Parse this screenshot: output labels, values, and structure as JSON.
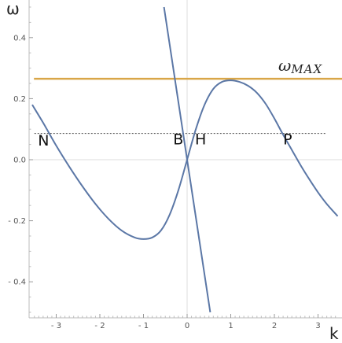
{
  "chart_data": {
    "type": "line",
    "xlabel": "k",
    "ylabel": "ω",
    "xlim": [
      -3.6,
      3.5
    ],
    "ylim": [
      -0.52,
      0.52
    ],
    "xticks": [
      -3,
      -2,
      -1,
      0,
      1,
      2,
      3
    ],
    "yticks": [
      -0.4,
      -0.2,
      0.0,
      0.2,
      0.4
    ],
    "xtick_labels": [
      "- 3",
      "- 2",
      "- 1",
      "0",
      "1",
      "2",
      "3"
    ],
    "ytick_labels": [
      "- 0.4",
      "- 0.2",
      "0.0",
      "0.2",
      "0.4"
    ],
    "grid": false,
    "colors": {
      "curve": "#5b77a6",
      "max_line": "#d9a648",
      "dotted": "#444444",
      "axes": "#bbbbbb"
    },
    "series": [
      {
        "style": "solid",
        "x": [
          -3.55,
          -3.3,
          -3.0,
          -2.7,
          -2.4,
          -2.1,
          -1.8,
          -1.5,
          -1.2,
          -1.0,
          -0.8,
          -0.6,
          -0.4,
          -0.2,
          0.0,
          0.2,
          0.4,
          0.6,
          0.8,
          1.0,
          1.2,
          1.4,
          1.6,
          1.8,
          2.0,
          2.2,
          2.4,
          2.6,
          2.8,
          3.0,
          3.2,
          3.45
        ],
        "y": [
          0.18,
          0.121,
          0.046,
          -0.023,
          -0.087,
          -0.145,
          -0.194,
          -0.232,
          -0.255,
          -0.26,
          -0.255,
          -0.232,
          -0.18,
          -0.1,
          0.0,
          0.1,
          0.18,
          0.232,
          0.255,
          0.26,
          0.255,
          0.242,
          0.219,
          0.183,
          0.135,
          0.082,
          0.032,
          -0.018,
          -0.064,
          -0.107,
          -0.145,
          -0.185
        ]
      },
      {
        "style": "solid",
        "x": [
          -0.53,
          0.53
        ],
        "y": [
          0.5,
          -0.5
        ]
      }
    ],
    "max_line": {
      "y": 0.265,
      "label_main": "ω",
      "label_sub": "MAX"
    },
    "dotted_line": {
      "y": 0.086,
      "x_start": -3.5,
      "x_end": 3.2
    },
    "annotations": [
      {
        "text": "N",
        "x": -3.42,
        "y": 0.047
      },
      {
        "text": "B",
        "x": -0.32,
        "y": 0.05
      },
      {
        "text": "H",
        "x": 0.18,
        "y": 0.05
      },
      {
        "text": "P",
        "x": 2.2,
        "y": 0.05
      }
    ]
  }
}
